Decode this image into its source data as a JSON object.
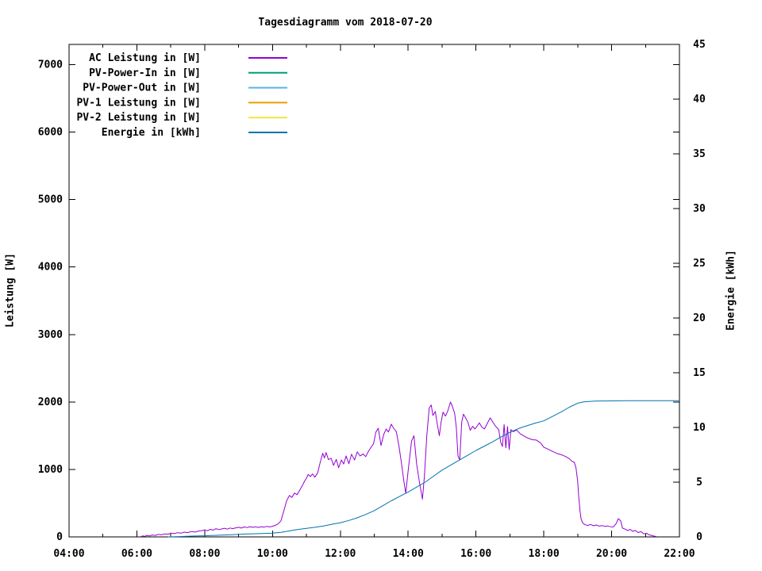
{
  "chart_data": {
    "type": "line",
    "title": "Tagesdiagramm vom 2018-07-20",
    "background": "#ffffff",
    "grid": false,
    "legend_position": "top-left",
    "x_axis": {
      "min": 4,
      "max": 22,
      "major_ticks": [
        4,
        6,
        8,
        10,
        12,
        14,
        16,
        18,
        20,
        22
      ],
      "major_tick_labels": [
        "04:00",
        "06:00",
        "08:00",
        "10:00",
        "12:00",
        "14:00",
        "16:00",
        "18:00",
        "20:00",
        "22:00"
      ],
      "minor_ticks": [
        5,
        7,
        9,
        11,
        13,
        15,
        17,
        19,
        21
      ]
    },
    "y_axis": {
      "label": "Leistung [W]",
      "min": 0,
      "max": 7300,
      "ticks": [
        0,
        1000,
        2000,
        3000,
        4000,
        5000,
        6000,
        7000
      ],
      "tick_labels": [
        "0",
        "1000",
        "2000",
        "3000",
        "4000",
        "5000",
        "6000",
        "7000"
      ]
    },
    "y2_axis": {
      "label": "Energie [kWh]",
      "min": 0,
      "max": 45,
      "ticks": [
        0,
        5,
        10,
        15,
        20,
        25,
        30,
        35,
        40,
        45
      ],
      "tick_labels": [
        "0",
        "5",
        "10",
        "15",
        "20",
        "25",
        "30",
        "35",
        "40",
        "45"
      ]
    },
    "legend": [
      {
        "label": "AC Leistung in [W]",
        "color": "#9400d3"
      },
      {
        "label": "PV-Power-In in [W]",
        "color": "#009e73"
      },
      {
        "label": "PV-Power-Out in [W]",
        "color": "#56b4e9"
      },
      {
        "label": "PV-1 Leistung in [W]",
        "color": "#e69f00"
      },
      {
        "label": "PV-2 Leistung in [W]",
        "color": "#f0e442"
      },
      {
        "label": "Energie in [kWh]",
        "color": "#0072b2"
      }
    ],
    "series": [
      {
        "name": "AC Leistung in [W]",
        "axis": "y",
        "color": "#9400d3",
        "x_unit": "hour_of_day",
        "points": [
          [
            6.12,
            5
          ],
          [
            6.18,
            15
          ],
          [
            6.23,
            8
          ],
          [
            6.3,
            22
          ],
          [
            6.37,
            14
          ],
          [
            6.45,
            28
          ],
          [
            6.55,
            22
          ],
          [
            6.63,
            38
          ],
          [
            6.72,
            30
          ],
          [
            6.82,
            45
          ],
          [
            6.92,
            40
          ],
          [
            7.0,
            55
          ],
          [
            7.1,
            48
          ],
          [
            7.2,
            62
          ],
          [
            7.3,
            55
          ],
          [
            7.4,
            70
          ],
          [
            7.5,
            64
          ],
          [
            7.6,
            80
          ],
          [
            7.72,
            72
          ],
          [
            7.83,
            88
          ],
          [
            7.95,
            95
          ],
          [
            8.0,
            105
          ],
          [
            8.08,
            92
          ],
          [
            8.17,
            112
          ],
          [
            8.25,
            100
          ],
          [
            8.33,
            122
          ],
          [
            8.42,
            108
          ],
          [
            8.5,
            118
          ],
          [
            8.58,
            128
          ],
          [
            8.67,
            115
          ],
          [
            8.75,
            132
          ],
          [
            8.83,
            122
          ],
          [
            8.92,
            135
          ],
          [
            9.0,
            142
          ],
          [
            9.08,
            130
          ],
          [
            9.17,
            148
          ],
          [
            9.25,
            138
          ],
          [
            9.33,
            152
          ],
          [
            9.42,
            142
          ],
          [
            9.5,
            150
          ],
          [
            9.58,
            140
          ],
          [
            9.67,
            152
          ],
          [
            9.75,
            145
          ],
          [
            9.83,
            155
          ],
          [
            9.92,
            148
          ],
          [
            10.0,
            158
          ],
          [
            10.08,
            172
          ],
          [
            10.17,
            195
          ],
          [
            10.25,
            240
          ],
          [
            10.33,
            380
          ],
          [
            10.42,
            540
          ],
          [
            10.5,
            615
          ],
          [
            10.57,
            585
          ],
          [
            10.65,
            650
          ],
          [
            10.72,
            625
          ],
          [
            10.8,
            690
          ],
          [
            10.88,
            760
          ],
          [
            10.95,
            830
          ],
          [
            11.0,
            870
          ],
          [
            11.05,
            925
          ],
          [
            11.12,
            895
          ],
          [
            11.18,
            935
          ],
          [
            11.25,
            885
          ],
          [
            11.33,
            950
          ],
          [
            11.4,
            1090
          ],
          [
            11.48,
            1240
          ],
          [
            11.53,
            1170
          ],
          [
            11.58,
            1250
          ],
          [
            11.65,
            1145
          ],
          [
            11.73,
            1165
          ],
          [
            11.8,
            1060
          ],
          [
            11.88,
            1150
          ],
          [
            11.95,
            1025
          ],
          [
            12.03,
            1140
          ],
          [
            12.1,
            1080
          ],
          [
            12.17,
            1200
          ],
          [
            12.25,
            1085
          ],
          [
            12.33,
            1225
          ],
          [
            12.42,
            1140
          ],
          [
            12.5,
            1260
          ],
          [
            12.58,
            1200
          ],
          [
            12.67,
            1230
          ],
          [
            12.75,
            1190
          ],
          [
            12.83,
            1270
          ],
          [
            12.92,
            1340
          ],
          [
            12.98,
            1380
          ],
          [
            13.05,
            1555
          ],
          [
            13.12,
            1610
          ],
          [
            13.2,
            1355
          ],
          [
            13.28,
            1520
          ],
          [
            13.35,
            1600
          ],
          [
            13.42,
            1555
          ],
          [
            13.5,
            1670
          ],
          [
            13.57,
            1610
          ],
          [
            13.65,
            1560
          ],
          [
            13.73,
            1340
          ],
          [
            13.8,
            1100
          ],
          [
            13.88,
            800
          ],
          [
            13.93,
            645
          ],
          [
            14.0,
            980
          ],
          [
            14.1,
            1420
          ],
          [
            14.17,
            1500
          ],
          [
            14.25,
            1080
          ],
          [
            14.33,
            820
          ],
          [
            14.42,
            560
          ],
          [
            14.48,
            900
          ],
          [
            14.55,
            1500
          ],
          [
            14.62,
            1910
          ],
          [
            14.68,
            1955
          ],
          [
            14.73,
            1800
          ],
          [
            14.8,
            1860
          ],
          [
            14.85,
            1700
          ],
          [
            14.92,
            1500
          ],
          [
            14.97,
            1700
          ],
          [
            15.03,
            1850
          ],
          [
            15.1,
            1790
          ],
          [
            15.17,
            1870
          ],
          [
            15.25,
            2000
          ],
          [
            15.3,
            1940
          ],
          [
            15.37,
            1830
          ],
          [
            15.42,
            1620
          ],
          [
            15.47,
            1200
          ],
          [
            15.52,
            1140
          ],
          [
            15.58,
            1700
          ],
          [
            15.63,
            1820
          ],
          [
            15.7,
            1760
          ],
          [
            15.77,
            1690
          ],
          [
            15.83,
            1580
          ],
          [
            15.9,
            1640
          ],
          [
            15.97,
            1600
          ],
          [
            16.03,
            1640
          ],
          [
            16.1,
            1690
          ],
          [
            16.17,
            1630
          ],
          [
            16.25,
            1600
          ],
          [
            16.33,
            1680
          ],
          [
            16.42,
            1765
          ],
          [
            16.5,
            1700
          ],
          [
            16.58,
            1640
          ],
          [
            16.67,
            1590
          ],
          [
            16.73,
            1400
          ],
          [
            16.78,
            1340
          ],
          [
            16.83,
            1665
          ],
          [
            16.88,
            1320
          ],
          [
            16.93,
            1635
          ],
          [
            16.98,
            1295
          ],
          [
            17.03,
            1590
          ],
          [
            17.1,
            1560
          ],
          [
            17.2,
            1585
          ],
          [
            17.3,
            1530
          ],
          [
            17.42,
            1495
          ],
          [
            17.53,
            1465
          ],
          [
            17.67,
            1440
          ],
          [
            17.78,
            1435
          ],
          [
            17.9,
            1395
          ],
          [
            18.0,
            1330
          ],
          [
            18.13,
            1300
          ],
          [
            18.27,
            1265
          ],
          [
            18.4,
            1235
          ],
          [
            18.53,
            1215
          ],
          [
            18.65,
            1190
          ],
          [
            18.75,
            1160
          ],
          [
            18.83,
            1120
          ],
          [
            18.9,
            1105
          ],
          [
            18.95,
            1020
          ],
          [
            19.0,
            820
          ],
          [
            19.03,
            600
          ],
          [
            19.07,
            380
          ],
          [
            19.1,
            265
          ],
          [
            19.15,
            205
          ],
          [
            19.22,
            180
          ],
          [
            19.3,
            170
          ],
          [
            19.38,
            185
          ],
          [
            19.47,
            165
          ],
          [
            19.55,
            178
          ],
          [
            19.63,
            160
          ],
          [
            19.72,
            168
          ],
          [
            19.8,
            155
          ],
          [
            19.88,
            162
          ],
          [
            19.97,
            150
          ],
          [
            20.05,
            148
          ],
          [
            20.13,
            195
          ],
          [
            20.2,
            270
          ],
          [
            20.27,
            235
          ],
          [
            20.32,
            130
          ],
          [
            20.4,
            115
          ],
          [
            20.47,
            95
          ],
          [
            20.55,
            110
          ],
          [
            20.62,
            82
          ],
          [
            20.7,
            95
          ],
          [
            20.78,
            65
          ],
          [
            20.87,
            78
          ],
          [
            20.95,
            45
          ],
          [
            21.03,
            55
          ],
          [
            21.1,
            30
          ],
          [
            21.18,
            22
          ],
          [
            21.25,
            12
          ],
          [
            21.32,
            5
          ]
        ]
      },
      {
        "name": "Energie in [kWh]",
        "axis": "y2",
        "color": "#0072b2",
        "x_unit": "hour_of_day",
        "points": [
          [
            6.92,
            0
          ],
          [
            7.25,
            0.03
          ],
          [
            7.6,
            0.07
          ],
          [
            8.0,
            0.1
          ],
          [
            8.4,
            0.15
          ],
          [
            8.8,
            0.2
          ],
          [
            9.2,
            0.26
          ],
          [
            9.6,
            0.3
          ],
          [
            10.0,
            0.34
          ],
          [
            10.25,
            0.42
          ],
          [
            10.5,
            0.55
          ],
          [
            10.75,
            0.68
          ],
          [
            11.0,
            0.78
          ],
          [
            11.25,
            0.88
          ],
          [
            11.5,
            1.0
          ],
          [
            11.75,
            1.15
          ],
          [
            12.0,
            1.3
          ],
          [
            12.25,
            1.5
          ],
          [
            12.5,
            1.75
          ],
          [
            12.75,
            2.05
          ],
          [
            13.0,
            2.4
          ],
          [
            13.25,
            2.85
          ],
          [
            13.5,
            3.3
          ],
          [
            13.75,
            3.7
          ],
          [
            14.0,
            4.1
          ],
          [
            14.25,
            4.55
          ],
          [
            14.5,
            5.0
          ],
          [
            14.75,
            5.55
          ],
          [
            15.0,
            6.1
          ],
          [
            15.25,
            6.55
          ],
          [
            15.5,
            7.0
          ],
          [
            15.75,
            7.45
          ],
          [
            16.0,
            7.9
          ],
          [
            16.25,
            8.3
          ],
          [
            16.5,
            8.7
          ],
          [
            16.75,
            9.15
          ],
          [
            17.0,
            9.55
          ],
          [
            17.25,
            9.9
          ],
          [
            17.5,
            10.15
          ],
          [
            17.75,
            10.4
          ],
          [
            18.0,
            10.6
          ],
          [
            18.25,
            11.0
          ],
          [
            18.5,
            11.4
          ],
          [
            18.75,
            11.85
          ],
          [
            19.0,
            12.22
          ],
          [
            19.17,
            12.33
          ],
          [
            19.33,
            12.38
          ],
          [
            19.5,
            12.41
          ],
          [
            19.75,
            12.42
          ],
          [
            20.0,
            12.43
          ],
          [
            20.5,
            12.44
          ],
          [
            21.0,
            12.44
          ],
          [
            21.5,
            12.45
          ],
          [
            22.0,
            12.45
          ]
        ]
      }
    ]
  }
}
